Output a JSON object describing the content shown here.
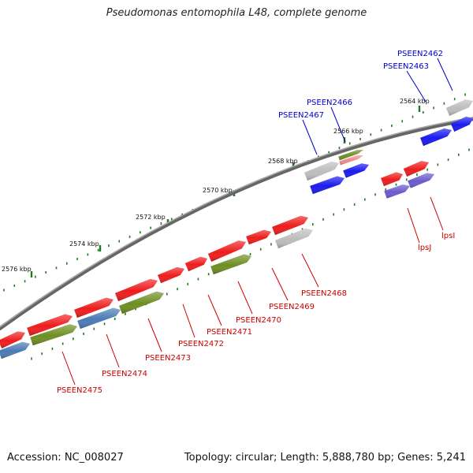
{
  "title": "Pseudomonas entomophila L48, complete genome",
  "footer": {
    "accession": "Accession: NC_008027",
    "topology": "Topology: circular; Length: 5,888,780 bp; Genes: 5,241"
  },
  "colors": {
    "backbone": "#7f7f7f",
    "tick": "#1e7a1e",
    "label_top": "#0000cc",
    "label_bottom": "#cc0000",
    "red": "#ee1c1c",
    "pink": "#f08a8a",
    "gray": "#bdbdbd",
    "blue": "#1a1aee",
    "olive": "#6e8e22",
    "steel": "#4a7ab5",
    "purple": "#6a5acd"
  },
  "scale_labels": [
    "2564 kbp",
    "2566 kbp",
    "2568 kbp",
    "2570 kbp",
    "2572 kbp",
    "2574 kbp",
    "2576 kbp"
  ],
  "genes_top": [
    {
      "label": "PSEEN2462",
      "color": "gray"
    },
    {
      "label": "PSEEN2463",
      "color": "blue"
    },
    {
      "label": "PSEEN2466",
      "color": "olive"
    },
    {
      "label": "PSEEN2467",
      "color": "gray"
    }
  ],
  "genes_bottom": [
    {
      "label": "lpsI",
      "color": "purple"
    },
    {
      "label": "lpsJ",
      "color": "purple"
    },
    {
      "label": "PSEEN2468",
      "color": "gray"
    },
    {
      "label": "PSEEN2469",
      "color": "red"
    },
    {
      "label": "PSEEN2470",
      "color": "olive"
    },
    {
      "label": "PSEEN2471",
      "color": "red"
    },
    {
      "label": "PSEEN2472",
      "color": "red"
    },
    {
      "label": "PSEEN2473",
      "color": "olive"
    },
    {
      "label": "PSEEN2474",
      "color": "steel"
    },
    {
      "label": "PSEEN2475",
      "color": "olive"
    }
  ]
}
